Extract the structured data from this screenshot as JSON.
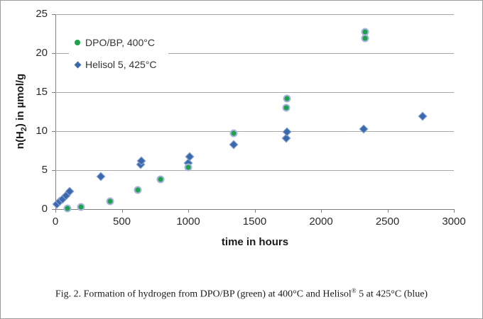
{
  "figure": {
    "caption_pre": "Fig. 2. Formation of hydrogen from DPO/BP (green) at 400°C and Helisol",
    "caption_sup": "®",
    "caption_post": " 5 at 425°C (blue)"
  },
  "chart_data": {
    "type": "scatter",
    "title": "",
    "xlabel": "time in hours",
    "ylabel_pre": "n(H",
    "ylabel_sub": "2",
    "ylabel_post": ") in µmol/g",
    "xlim": [
      0,
      3000
    ],
    "ylim": [
      0,
      25
    ],
    "xticks": [
      0,
      500,
      1000,
      1500,
      2000,
      2500,
      3000
    ],
    "yticks": [
      0,
      5,
      10,
      15,
      20,
      25
    ],
    "grid": "horizontal gridlines at every y tick, no vertical gridlines",
    "legend_position": "inside upper-left, white background, no border",
    "series": [
      {
        "name": "DPO/BP, 400°C",
        "marker": "circle",
        "color": "#1ca24c",
        "points": [
          [
            90,
            0.1
          ],
          [
            190,
            0.3
          ],
          [
            410,
            1.0
          ],
          [
            620,
            2.5
          ],
          [
            790,
            3.8
          ],
          [
            1000,
            5.4
          ],
          [
            1340,
            9.7
          ],
          [
            1740,
            13.0
          ],
          [
            1745,
            14.2
          ],
          [
            2330,
            21.9
          ],
          [
            2330,
            22.7
          ]
        ]
      },
      {
        "name": "Helisol 5, 425°C",
        "marker": "diamond",
        "color": "#3a68ad",
        "points": [
          [
            10,
            0.6
          ],
          [
            30,
            1.0
          ],
          [
            55,
            1.3
          ],
          [
            80,
            1.7
          ],
          [
            105,
            2.3
          ],
          [
            340,
            4.2
          ],
          [
            640,
            5.7
          ],
          [
            645,
            6.2
          ],
          [
            1000,
            5.9
          ],
          [
            1010,
            6.7
          ],
          [
            1340,
            8.3
          ],
          [
            1740,
            9.1
          ],
          [
            1745,
            9.9
          ],
          [
            2320,
            10.3
          ],
          [
            2765,
            11.9
          ]
        ]
      }
    ]
  }
}
